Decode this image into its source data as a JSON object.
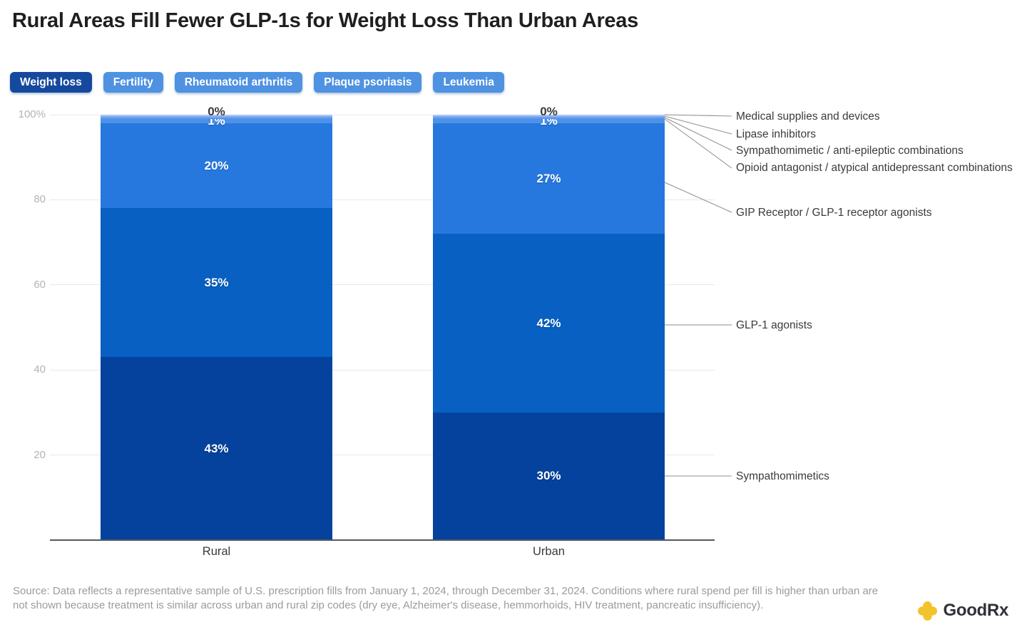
{
  "title": "Rural Areas Fill Fewer GLP-1s for Weight Loss Than Urban Areas",
  "tabs": [
    {
      "label": "Weight loss",
      "active": true
    },
    {
      "label": "Fertility",
      "active": false
    },
    {
      "label": "Rheumatoid arthritis",
      "active": false
    },
    {
      "label": "Plaque psoriasis",
      "active": false
    },
    {
      "label": "Leukemia",
      "active": false
    }
  ],
  "chart_data": {
    "type": "bar",
    "subtype": "stacked-percentage",
    "categories": [
      "Rural",
      "Urban"
    ],
    "series": [
      {
        "name": "Sympathomimetics",
        "color": "#05429E",
        "values": [
          43,
          30
        ]
      },
      {
        "name": "GLP-1 agonists",
        "color": "#0760C2",
        "values": [
          35,
          42
        ]
      },
      {
        "name": "GIP Receptor / GLP-1 receptor agonists",
        "color": "#2678DF",
        "values": [
          20,
          27
        ]
      },
      {
        "name": "Opioid antagonist / atypical antidepressant combinations",
        "color": "#4E92E8",
        "values": [
          1,
          1
        ]
      },
      {
        "name": "Sympathomimetic / anti-epileptic combinations",
        "color": "#5B96EB",
        "values": [
          0,
          0
        ]
      },
      {
        "name": "Lipase inhibitors",
        "color": "#7FA9F0",
        "values": [
          0,
          0
        ]
      },
      {
        "name": "Medical supplies and devices",
        "color": "#A6C6F7",
        "values": [
          0,
          0
        ]
      }
    ],
    "y_ticks": [
      "100%",
      "80",
      "60",
      "40",
      "20"
    ],
    "ylim": [
      0,
      100
    ],
    "grid": "horizontal",
    "legend_position": "right-callouts"
  },
  "source": "Source: Data reflects a representative sample of U.S. prescription fills from January 1, 2024, through December 31, 2024. Conditions where rural spend per fill is higher than urban are not shown because treatment is similar across urban and rural zip codes (dry eye, Alzheimer's disease, hemmorhoids, HIV treatment, pancreatic insufficiency).",
  "logo": {
    "text": "GoodRx"
  }
}
